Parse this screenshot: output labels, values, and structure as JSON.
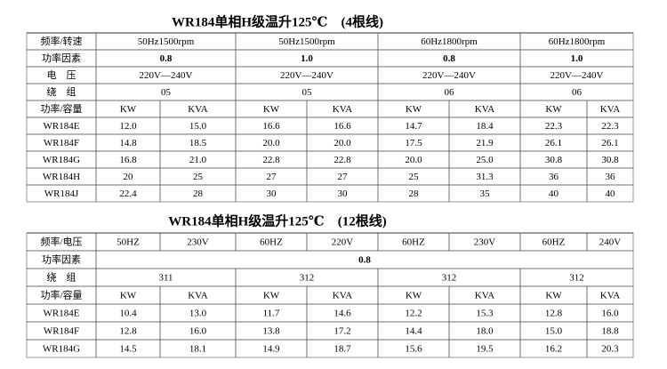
{
  "tables": [
    {
      "title": "WR184单相H级温升125℃　(4根线)",
      "rows": [
        [
          "频率/转速",
          "50Hz1500rpm",
          "50Hz1500rpm",
          "60Hz1800rpm",
          "60Hz1800rpm"
        ],
        [
          "功率因素",
          "0.8",
          "1.0",
          "0.8",
          "1.0"
        ],
        [
          "电　压",
          "220V—240V",
          "220V—240V",
          "220V—240V",
          "220V—240V"
        ],
        [
          "绕　组",
          "05",
          "05",
          "06",
          "06"
        ],
        [
          "功率/容量",
          "KW",
          "KVA",
          "KW",
          "KVA",
          "KW",
          "KVA",
          "KW",
          "KVA"
        ],
        [
          "WR184E",
          "12.0",
          "15.0",
          "16.6",
          "16.6",
          "14.7",
          "18.4",
          "22.3",
          "22.3"
        ],
        [
          "WR184F",
          "14.8",
          "18.5",
          "20.0",
          "20.0",
          "17.5",
          "21.9",
          "26.1",
          "26.1"
        ],
        [
          "WR184G",
          "16.8",
          "21.0",
          "22.8",
          "22.8",
          "20.0",
          "25.0",
          "30.8",
          "30.8"
        ],
        [
          "WR184H",
          "20",
          "25",
          "27",
          "27",
          "25",
          "31.3",
          "36",
          "36"
        ],
        [
          "WR184J",
          "22.4",
          "28",
          "30",
          "30",
          "28",
          "35",
          "40",
          "40"
        ]
      ]
    },
    {
      "title": "WR184单相H级温升125℃　(12根线)",
      "rows": [
        [
          "频率/电压",
          "50HZ",
          "230V",
          "60HZ",
          "220V",
          "60HZ",
          "230V",
          "60HZ",
          "240V"
        ],
        [
          "功率因素",
          "0.8"
        ],
        [
          "绕　组",
          "311",
          "312",
          "312",
          "312"
        ],
        [
          "功率/容量",
          "KW",
          "KVA",
          "KW",
          "KVA",
          "KW",
          "KVA",
          "KW",
          "KVA"
        ],
        [
          "WR184E",
          "10.4",
          "13.0",
          "11.7",
          "14.6",
          "12.2",
          "15.3",
          "12.8",
          "16.0"
        ],
        [
          "WR184F",
          "12.8",
          "16.0",
          "13.8",
          "17.2",
          "14.4",
          "18.0",
          "15.0",
          "18.8"
        ],
        [
          "WR184G",
          "14.5",
          "18.1",
          "14.9",
          "18.7",
          "15.6",
          "19.5",
          "16.2",
          "20.3"
        ]
      ]
    }
  ]
}
